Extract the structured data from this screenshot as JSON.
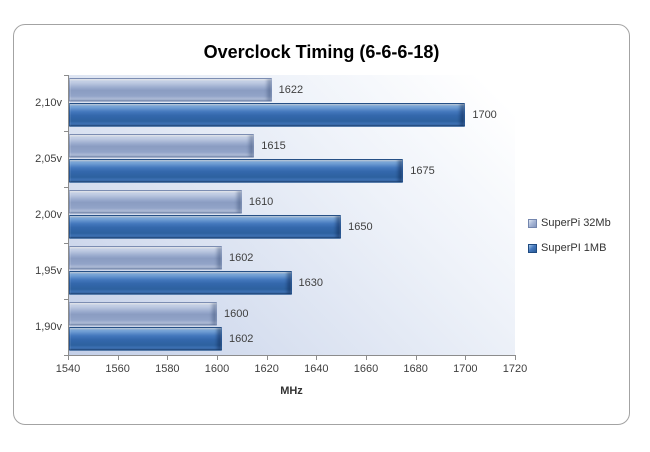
{
  "chart_data": {
    "type": "bar",
    "orientation": "horizontal",
    "title": "Overclock Timing (6-6-6-18)",
    "xlabel": "MHz",
    "categories": [
      "2,10v",
      "2,05v",
      "2,00v",
      "1,95v",
      "1,90v"
    ],
    "series": [
      {
        "name": "SuperPi 32Mb",
        "color_key": "light",
        "color": "#95a9cd",
        "values": [
          1622,
          1615,
          1610,
          1602,
          1600
        ]
      },
      {
        "name": "SuperPI 1MB",
        "color_key": "dark",
        "color": "#3a72b4",
        "values": [
          1700,
          1675,
          1650,
          1630,
          1602
        ]
      }
    ],
    "xlim": [
      1540,
      1720
    ],
    "xticks": [
      1540,
      1560,
      1580,
      1600,
      1620,
      1640,
      1660,
      1680,
      1700,
      1720
    ],
    "grid": false,
    "legend_position": "right",
    "value_labels_shown": true
  }
}
